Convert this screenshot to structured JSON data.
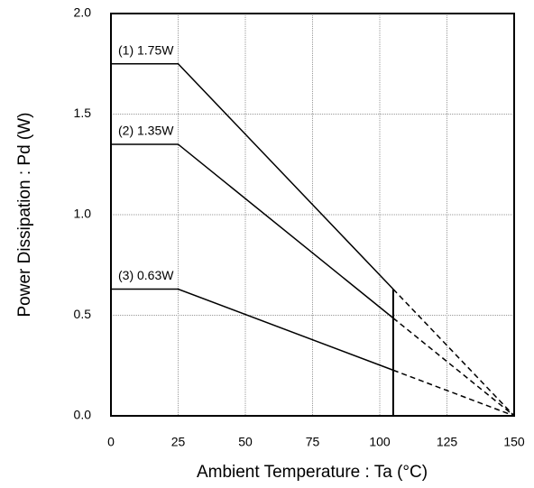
{
  "chart_data": {
    "type": "line",
    "xlabel": "Ambient Temperature : Ta (°C)",
    "ylabel": "Power Dissipation : Pd (W)",
    "xlim": [
      0,
      150
    ],
    "xticks": [
      0,
      25,
      50,
      75,
      100,
      125,
      150
    ],
    "ylim": [
      0,
      2
    ],
    "yticks": [
      {
        "value": 0,
        "label": "0.0"
      },
      0.5,
      {
        "value": 1,
        "label": "1.0"
      },
      1.5,
      {
        "value": 2,
        "label": "2.0"
      }
    ],
    "grid": true,
    "x": [
      0,
      25,
      105,
      150
    ],
    "dashed_from_index": 2,
    "series": [
      {
        "name": "(1) 1.75W",
        "color": "#000000",
        "values": [
          1.75,
          1.75,
          0.63,
          0
        ]
      },
      {
        "name": "(2) 1.35W",
        "color": "#000000",
        "values": [
          1.35,
          1.35,
          0.486,
          0
        ]
      },
      {
        "name": "(3) 0.63W",
        "color": "#000000",
        "values": [
          0.63,
          0.63,
          0.227,
          0
        ]
      }
    ]
  }
}
